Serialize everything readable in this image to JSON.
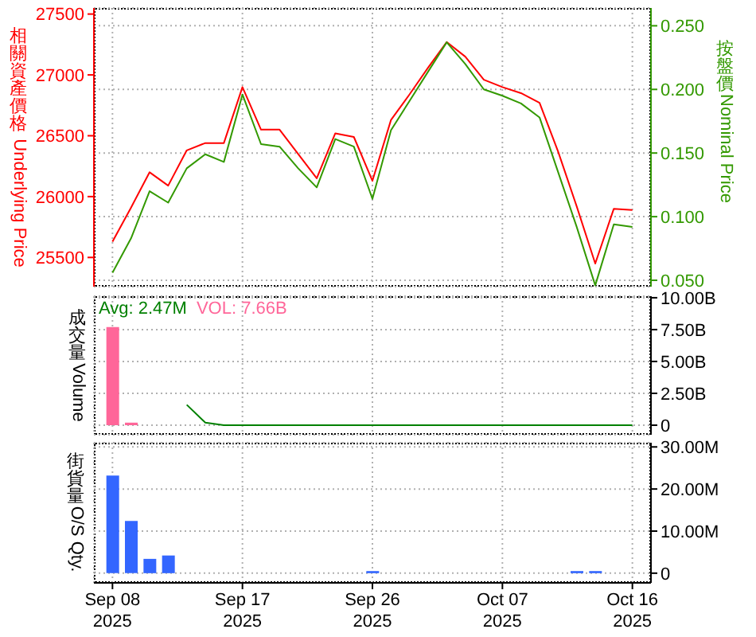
{
  "chart_data": [
    {
      "type": "line",
      "ylabel": "相關資產價格 Underlying Price",
      "y2label": "按盤價Nominal Price",
      "categories": [
        null,
        null,
        null,
        null,
        null,
        null,
        null,
        null,
        null,
        null,
        null,
        null,
        null,
        null,
        null,
        null,
        null,
        null,
        null,
        null,
        null,
        null,
        null,
        null,
        null,
        null,
        null,
        null,
        null
      ],
      "series": [
        {
          "color": "#ff0000",
          "values": [
            25630,
            25910,
            26200,
            26090,
            26380,
            26440,
            26440,
            26900,
            26550,
            26550,
            26350,
            26150,
            26520,
            26490,
            26130,
            26630,
            26840,
            27060,
            27270,
            27150,
            26960,
            26900,
            26850,
            26770,
            26370,
            25920,
            25450,
            25900,
            25890
          ]
        },
        {
          "color": "#339900",
          "axis": "y2",
          "values": [
            0.056,
            0.083,
            0.12,
            0.111,
            0.138,
            0.149,
            0.143,
            0.196,
            0.157,
            0.155,
            0.138,
            0.123,
            0.161,
            0.155,
            0.114,
            0.168,
            0.191,
            0.214,
            0.237,
            0.22,
            0.2,
            0.195,
            0.189,
            0.178,
            0.135,
            0.092,
            0.046,
            0.094,
            0.092
          ]
        }
      ],
      "ylim": [
        25260,
        27550
      ],
      "yticks": [
        25500,
        26000,
        26500,
        27000,
        27500
      ],
      "y2lim": [
        0.045,
        0.264
      ],
      "y2ticks": [
        {
          "value": 0.05,
          "label": "0.050"
        },
        {
          "value": 0.1,
          "label": "0.100"
        },
        {
          "value": 0.15,
          "label": "0.150"
        },
        {
          "value": 0.2,
          "label": "0.200"
        },
        {
          "value": 0.25,
          "label": "0.250"
        }
      ],
      "grid": true,
      "tick_labels": "y",
      "marker": "none"
    },
    {
      "type": "bar",
      "ylabel": "成交量Volume",
      "categories": [
        null,
        null,
        null,
        null,
        null,
        null,
        null,
        null,
        null,
        null,
        null,
        null,
        null,
        null,
        null,
        null,
        null,
        null,
        null,
        null,
        null,
        null,
        null,
        null,
        null,
        null,
        null,
        null,
        null
      ],
      "series": [
        {
          "name": "Avg: 2.47M",
          "type": "line",
          "color": "#008000",
          "values": [
            null,
            null,
            null,
            null,
            1600000000,
            200000000,
            0,
            0,
            0,
            0,
            0,
            0,
            0,
            0,
            0,
            0,
            0,
            0,
            0,
            0,
            0,
            0,
            0,
            0,
            0,
            0,
            0,
            0,
            0
          ]
        },
        {
          "name": "VOL: 7.66B",
          "color": "#ff6699",
          "values": [
            7700000000,
            200000000,
            null,
            null,
            null,
            null,
            null,
            null,
            null,
            null,
            null,
            null,
            null,
            null,
            null,
            null,
            null,
            null,
            null,
            null,
            null,
            null,
            null,
            null,
            null,
            null,
            null,
            null,
            null
          ]
        }
      ],
      "ylim": [
        -750000000,
        10120000000
      ],
      "yticks": [
        0,
        {
          "value": 2500000000,
          "label": "2.50B"
        },
        {
          "value": 5000000000,
          "label": "5.00B"
        },
        {
          "value": 7500000000,
          "label": "7.50B"
        },
        {
          "value": 10000000000,
          "label": "10.00B"
        }
      ],
      "grid": true,
      "legend": "top left",
      "tick_labels": "y",
      "marker": "none"
    },
    {
      "type": "bar",
      "ylabel": "街貨量O/S Qty.",
      "categories": [
        "Sep 08\n2025",
        null,
        null,
        null,
        null,
        null,
        null,
        "Sep 17\n2025",
        null,
        null,
        null,
        null,
        null,
        null,
        "Sep 26\n2025",
        null,
        null,
        null,
        null,
        null,
        null,
        "Oct 07\n2025",
        null,
        null,
        null,
        null,
        null,
        null,
        "Oct 16\n2025"
      ],
      "values": [
        23200000,
        12400000,
        3400000,
        4200000,
        null,
        null,
        null,
        null,
        null,
        null,
        null,
        null,
        null,
        null,
        500000,
        null,
        null,
        null,
        null,
        null,
        null,
        null,
        null,
        null,
        null,
        500000,
        500000,
        null,
        null
      ],
      "color": "#3366ff",
      "ylim": [
        -2300000,
        31000000
      ],
      "yticks": [
        0,
        {
          "value": 10000000,
          "label": "10.00M"
        },
        {
          "value": 20000000,
          "label": "20.00M"
        },
        {
          "value": 30000000,
          "label": "30.00M"
        }
      ],
      "grid": true
    }
  ]
}
